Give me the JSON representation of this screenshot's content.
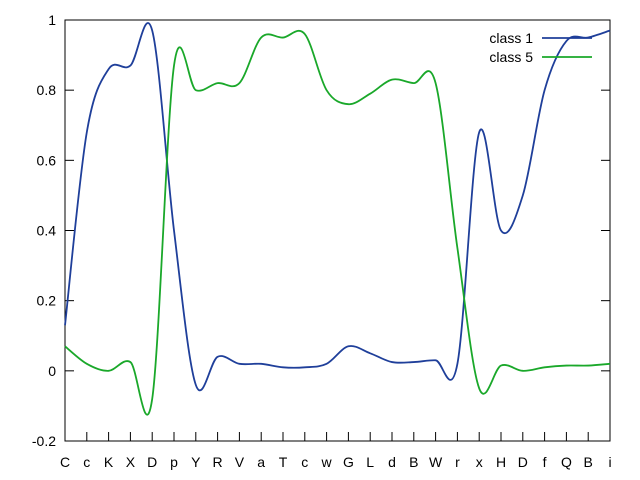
{
  "chart_data": {
    "type": "line",
    "categories": [
      "C",
      "c",
      "K",
      "X",
      "D",
      "p",
      "Y",
      "R",
      "V",
      "a",
      "T",
      "c",
      "w",
      "G",
      "L",
      "d",
      "B",
      "W",
      "r",
      "x",
      "H",
      "D",
      "f",
      "Q",
      "B",
      "i"
    ],
    "series": [
      {
        "name": "class 1",
        "color": "#1f3f9a",
        "values": [
          0.13,
          0.68,
          0.86,
          0.87,
          0.97,
          0.4,
          -0.04,
          0.04,
          0.02,
          0.02,
          0.01,
          0.01,
          0.02,
          0.07,
          0.05,
          0.025,
          0.025,
          0.03,
          0.02,
          0.68,
          0.4,
          0.5,
          0.8,
          0.94,
          0.95,
          0.97
        ]
      },
      {
        "name": "class 5",
        "color": "#1aa82a",
        "values": [
          0.07,
          0.02,
          0.0,
          0.025,
          -0.08,
          0.87,
          0.8,
          0.82,
          0.82,
          0.95,
          0.95,
          0.96,
          0.8,
          0.76,
          0.79,
          0.83,
          0.82,
          0.82,
          0.35,
          -0.05,
          0.015,
          0.0,
          0.01,
          0.015,
          0.015,
          0.02
        ]
      }
    ],
    "ylim": [
      -0.2,
      1
    ],
    "yticks": [
      {
        "value": -0.2,
        "label": "-0.2"
      },
      {
        "value": 0,
        "label": "0"
      },
      {
        "value": 0.2,
        "label": "0.2"
      },
      {
        "value": 0.4,
        "label": "0.4"
      },
      {
        "value": 0.6,
        "label": "0.6"
      },
      {
        "value": 0.8,
        "label": "0.8"
      },
      {
        "value": 1,
        "label": "1"
      }
    ],
    "grid": false,
    "legend_position": "top-right"
  }
}
